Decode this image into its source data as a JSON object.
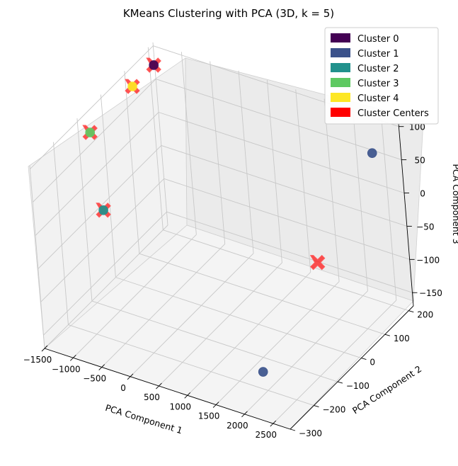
{
  "chart_data": {
    "type": "scatter",
    "projection": "3d",
    "title": "KMeans Clustering with PCA (3D, k = 5)",
    "xlabel": "PCA Component 1",
    "ylabel": "PCA Component 2",
    "zlabel": "PCA Component 3",
    "xlim": [
      -1500,
      2800
    ],
    "ylim": [
      -300,
      220
    ],
    "zlim": [
      -170,
      105
    ],
    "xticks": [
      -1500,
      -1000,
      -500,
      0,
      500,
      1000,
      1500,
      2000,
      2500
    ],
    "yticks": [
      -300,
      -200,
      -100,
      0,
      100,
      200
    ],
    "zticks": [
      -150,
      -100,
      -50,
      0,
      50,
      100
    ],
    "grid": true,
    "legend_position": "top-right",
    "legend": [
      {
        "label": "Cluster 0",
        "color": "#440154"
      },
      {
        "label": "Cluster 1",
        "color": "#3b528b"
      },
      {
        "label": "Cluster 2",
        "color": "#21918c"
      },
      {
        "label": "Cluster 3",
        "color": "#5ec962"
      },
      {
        "label": "Cluster 4",
        "color": "#fde725"
      },
      {
        "label": "Cluster Centers",
        "color": "#ff0000"
      }
    ],
    "points": [
      {
        "cluster": 0,
        "x": -1380,
        "y": 190,
        "z": 85
      },
      {
        "cluster": 1,
        "x": 2420,
        "y": 190,
        "z": 60
      },
      {
        "cluster": 1,
        "x": 2350,
        "y": -290,
        "z": -100
      },
      {
        "cluster": 2,
        "x": -700,
        "y": -200,
        "z": 25
      },
      {
        "cluster": 3,
        "x": -1380,
        "y": -80,
        "z": 80
      },
      {
        "cluster": 4,
        "x": -1380,
        "y": 100,
        "z": 85
      }
    ],
    "centers": [
      {
        "cluster": 0,
        "x": -1380,
        "y": 190,
        "z": 85
      },
      {
        "cluster": 1,
        "x": 2385,
        "y": -50,
        "z": -20
      },
      {
        "cluster": 2,
        "x": -700,
        "y": -200,
        "z": 25
      },
      {
        "cluster": 3,
        "x": -1380,
        "y": -80,
        "z": 80
      },
      {
        "cluster": 4,
        "x": -1380,
        "y": 100,
        "z": 85
      }
    ]
  }
}
